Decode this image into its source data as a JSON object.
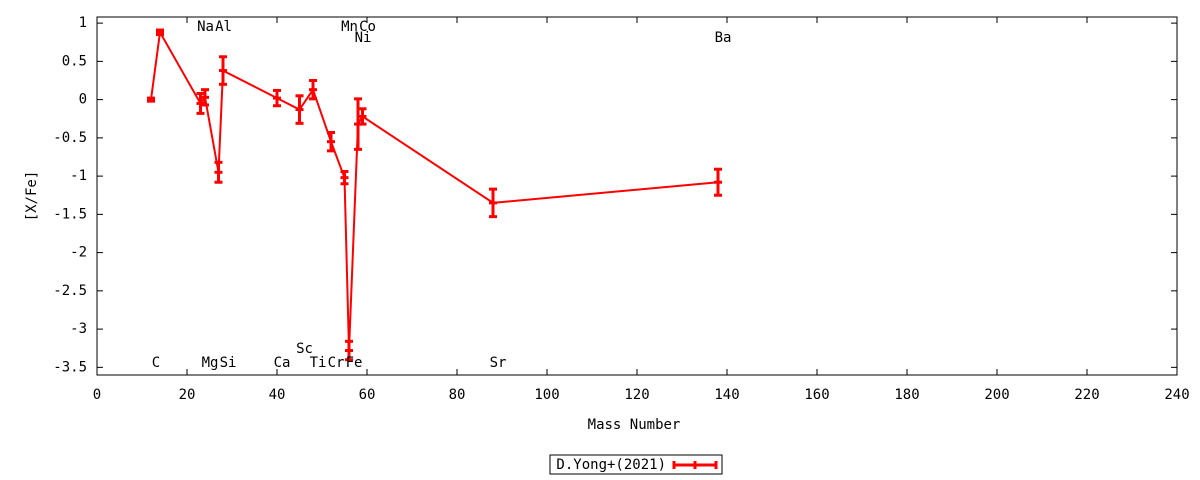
{
  "chart_data": {
    "type": "line",
    "xlabel": "Mass Number",
    "ylabel": "[X/Fe]",
    "xlim": [
      0,
      240
    ],
    "xticks": [
      0,
      20,
      40,
      60,
      80,
      100,
      120,
      140,
      160,
      180,
      200,
      220,
      240
    ],
    "ylim": [
      -3.6,
      1.08
    ],
    "yticks": [
      1,
      0.5,
      0,
      -0.5,
      -1,
      -1.5,
      -2,
      -2.5,
      -3,
      -3.5
    ],
    "series": [
      {
        "name": "D.Yong+(2021)",
        "color": "#ff0000",
        "x": [
          12,
          14,
          23,
          24,
          27,
          28,
          40,
          45,
          48,
          52,
          55,
          56,
          58,
          59,
          88,
          138
        ],
        "values": [
          0.0,
          0.88,
          -0.05,
          0.03,
          -0.95,
          0.38,
          0.02,
          -0.13,
          0.13,
          -0.55,
          -1.02,
          -3.28,
          -0.32,
          -0.22,
          -1.35,
          -1.08
        ],
        "errors": [
          0.02,
          0.03,
          0.13,
          0.1,
          0.13,
          0.18,
          0.1,
          0.18,
          0.12,
          0.12,
          0.08,
          0.12,
          0.33,
          0.1,
          0.18,
          0.17
        ]
      }
    ],
    "annotations": [
      {
        "text": "C",
        "x": 12
      },
      {
        "text": "Na",
        "x": 23
      },
      {
        "text": "Mg",
        "x": 24
      },
      {
        "text": "Al",
        "x": 27
      },
      {
        "text": "Si",
        "x": 28
      },
      {
        "text": "Ca",
        "x": 40
      },
      {
        "text": "Sc",
        "x": 45
      },
      {
        "text": "Ti",
        "x": 48
      },
      {
        "text": "Cr",
        "x": 52
      },
      {
        "text": "Mn",
        "x": 55
      },
      {
        "text": "Fe",
        "x": 56
      },
      {
        "text": "Co",
        "x": 59
      },
      {
        "text": "Ni",
        "x": 58
      },
      {
        "text": "Sr",
        "x": 88
      },
      {
        "text": "Ba",
        "x": 138
      }
    ],
    "legend": "bottom"
  }
}
